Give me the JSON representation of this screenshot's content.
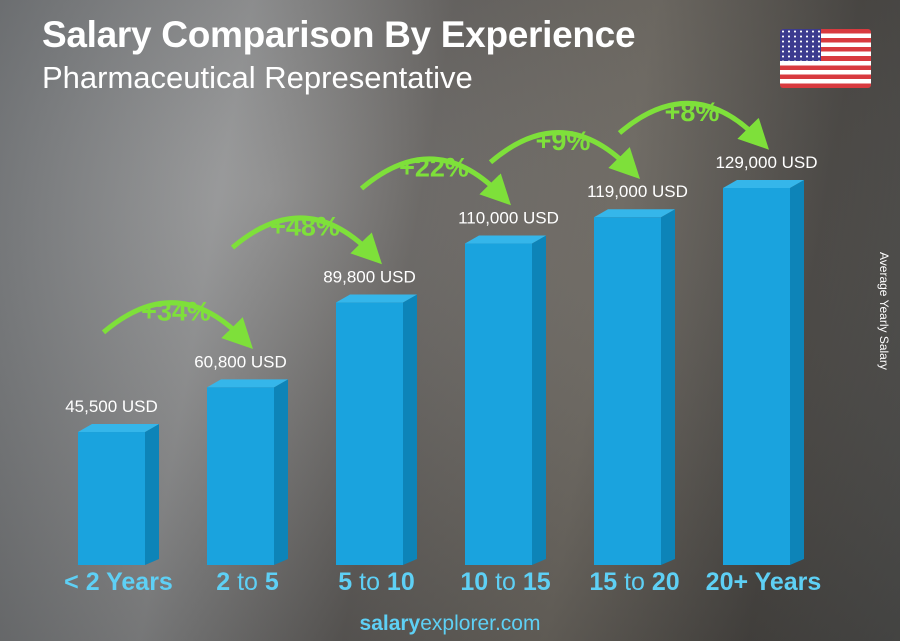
{
  "header": {
    "title": "Salary Comparison By Experience",
    "subtitle": "Pharmaceutical Representative"
  },
  "flag": {
    "icon": "us-flag-icon"
  },
  "footer": {
    "brand_bold": "salary",
    "brand_rest": "explorer.com"
  },
  "chart_data": {
    "type": "bar",
    "title": "Salary Comparison By Experience",
    "subtitle": "Pharmaceutical Representative",
    "ylabel": "Average Yearly Salary",
    "categories": [
      "< 2 Years",
      "2 to 5",
      "5 to 10",
      "10 to 15",
      "15 to 20",
      "20+ Years"
    ],
    "values": [
      45500,
      60800,
      89800,
      110000,
      119000,
      129000
    ],
    "value_labels": [
      "45,500 USD",
      "60,800 USD",
      "89,800 USD",
      "110,000 USD",
      "119,000 USD",
      "129,000 USD"
    ],
    "increases": [
      "+34%",
      "+48%",
      "+22%",
      "+9%",
      "+8%"
    ],
    "ylim": [
      0,
      129000
    ],
    "grid": false,
    "colors": {
      "bar": "#1aa3de",
      "bar_side": "#0d84b8",
      "bar_top": "#35b6ea",
      "increase": "#7ee03a",
      "category": "#5ed0f5"
    }
  }
}
